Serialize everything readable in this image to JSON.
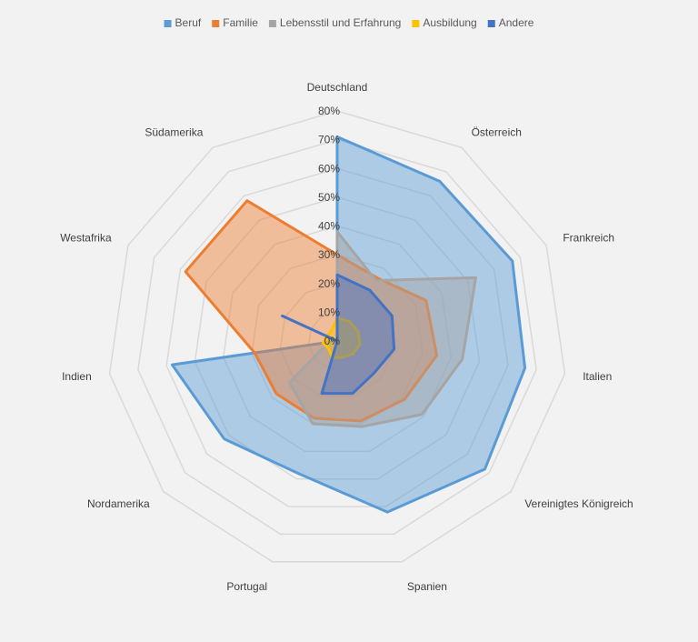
{
  "chart_data": {
    "type": "radar",
    "categories": [
      "Deutschland",
      "Österreich",
      "Frankreich",
      "Italien",
      "Vereinigtes Königreich",
      "Spanien",
      "Portugal",
      "Nordamerika",
      "Indien",
      "Westafrika",
      "Südamerika"
    ],
    "rlim": [
      0,
      80
    ],
    "ticks": [
      "0%",
      "10%",
      "20%",
      "30%",
      "40%",
      "50%",
      "60%",
      "70%",
      "80%"
    ],
    "tick_values": [
      0,
      10,
      20,
      30,
      40,
      50,
      60,
      70,
      80
    ],
    "grid": true,
    "legend_position": "top",
    "series": [
      {
        "name": "Beruf",
        "color": "#5b9bd5",
        "values": [
          71,
          66,
          67,
          66,
          68,
          62,
          48,
          52,
          58,
          0,
          0
        ]
      },
      {
        "name": "Familie",
        "color": "#ed7d31",
        "values": [
          30,
          26,
          34,
          35,
          31,
          29,
          28,
          28,
          29,
          58,
          58
        ]
      },
      {
        "name": "Lebensstil und Erfahrung",
        "color": "#a5a5a5",
        "values": [
          38,
          25,
          53,
          44,
          39,
          31,
          30,
          22,
          3,
          3,
          0
        ]
      },
      {
        "name": "Ausbildung",
        "color": "#ffc000",
        "values": [
          8,
          8,
          8,
          8,
          7,
          6,
          6,
          4,
          5,
          4,
          4
        ]
      },
      {
        "name": "Andere",
        "color": "#4472c4",
        "values": [
          23,
          21,
          21,
          20,
          17,
          19,
          19,
          0,
          0,
          21,
          0
        ]
      }
    ]
  }
}
